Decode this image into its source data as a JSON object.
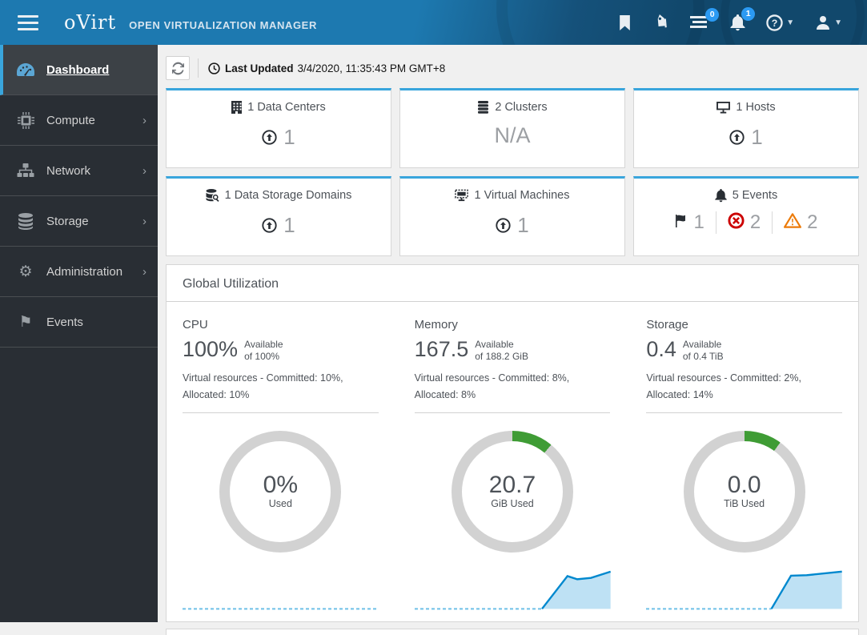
{
  "header": {
    "brand": "oVirt",
    "product": "OPEN VIRTUALIZATION MANAGER",
    "tasks_badge": "0",
    "notifications_badge": "1"
  },
  "sidebar": {
    "items": [
      {
        "label": "Dashboard",
        "icon": "dashboard-icon",
        "active": true,
        "expandable": false
      },
      {
        "label": "Compute",
        "icon": "compute-icon",
        "active": false,
        "expandable": true
      },
      {
        "label": "Network",
        "icon": "network-icon",
        "active": false,
        "expandable": true
      },
      {
        "label": "Storage",
        "icon": "storage-icon",
        "active": false,
        "expandable": true
      },
      {
        "label": "Administration",
        "icon": "administration-icon",
        "active": false,
        "expandable": true
      },
      {
        "label": "Events",
        "icon": "events-icon",
        "active": false,
        "expandable": false
      }
    ],
    "chevron": "›"
  },
  "toolbar": {
    "last_updated_label": "Last Updated",
    "last_updated_value": "3/4/2020, 11:35:43 PM GMT+8"
  },
  "summary_cards": [
    {
      "title": "1 Data Centers",
      "icon": "data-center-icon",
      "value": "1"
    },
    {
      "title": "2 Clusters",
      "icon": "cluster-icon",
      "value": "N/A"
    },
    {
      "title": "1 Hosts",
      "icon": "host-icon",
      "value": "1"
    },
    {
      "title": "1 Data Storage Domains",
      "icon": "storage-domain-icon",
      "value": "1"
    },
    {
      "title": "1 Virtual Machines",
      "icon": "virtual-machine-icon",
      "value": "1"
    },
    {
      "title": "5 Events",
      "icon": "bell-icon",
      "events": {
        "alerts": "1",
        "errors": "2",
        "warnings": "2"
      }
    }
  ],
  "utilization": {
    "title": "Global Utilization",
    "panels": [
      {
        "name": "CPU",
        "big_value": "100%",
        "available_label": "Available",
        "available_of": "of 100%",
        "virtual_resources": "Virtual resources - Committed: 10%, Allocated: 10%",
        "donut": {
          "percent": 0,
          "center_value": "0%",
          "center_label": "Used"
        },
        "sparkline": {
          "flat_end": 100,
          "spike": []
        }
      },
      {
        "name": "Memory",
        "big_value": "167.5",
        "available_label": "Available",
        "available_of": "of 188.2 GiB",
        "virtual_resources": "Virtual resources - Committed: 8%, Allocated: 8%",
        "donut": {
          "percent": 11,
          "center_value": "20.7",
          "center_label": "GiB Used"
        },
        "sparkline": {
          "flat_end": 65,
          "spike": [
            [
              65,
              3
            ],
            [
              78,
              76
            ],
            [
              83,
              69
            ],
            [
              90,
              72
            ],
            [
              100,
              86
            ]
          ]
        }
      },
      {
        "name": "Storage",
        "big_value": "0.4",
        "available_label": "Available",
        "available_of": "of 0.4 TiB",
        "virtual_resources": "Virtual resources - Committed: 2%, Allocated: 14%",
        "donut": {
          "percent": 10,
          "center_value": "0.0",
          "center_label": "TiB Used"
        },
        "sparkline": {
          "flat_end": 64,
          "spike": [
            [
              64,
              3
            ],
            [
              74,
              77
            ],
            [
              82,
              78
            ],
            [
              100,
              86
            ]
          ]
        }
      }
    ]
  },
  "colors": {
    "accent_blue": "#39a5dc",
    "donut_used_green": "#3f9c35",
    "donut_track_gray": "#d2d2d2",
    "spark_line_blue": "#0088ce",
    "spark_fill_blue": "#bee1f4",
    "spark_dash_blue": "#6ec0e8",
    "error_red": "#cc0000",
    "warning_orange": "#ec7a08"
  }
}
